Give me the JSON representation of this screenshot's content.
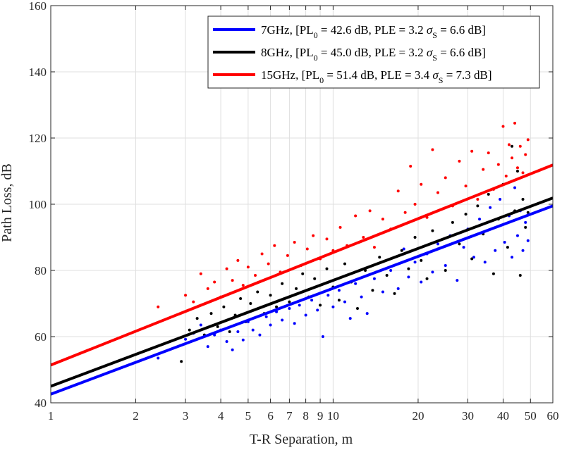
{
  "chart_data": {
    "type": "scatter",
    "title": "",
    "xlabel": "T-R Separation, m",
    "ylabel": "Path Loss, dB",
    "xscale": "log",
    "xlim": [
      1,
      60
    ],
    "ylim": [
      40,
      160
    ],
    "grid": true,
    "legend_position": "top-right",
    "x_ticks": [
      1,
      2,
      3,
      4,
      5,
      6,
      7,
      8,
      9,
      10,
      20,
      30,
      40,
      50,
      60
    ],
    "x_tick_labels": [
      "1",
      "2",
      "3",
      "4",
      "5",
      "6",
      "7",
      "8",
      "9",
      "10",
      "20",
      "30",
      "40",
      "50",
      "60"
    ],
    "y_ticks": [
      40,
      60,
      80,
      100,
      120,
      140,
      160
    ],
    "y_tick_labels": [
      "40",
      "60",
      "80",
      "100",
      "120",
      "140",
      "160"
    ],
    "series": [
      {
        "name": "7GHz",
        "color": "#0000ff",
        "pl0": 42.6,
        "ple": 3.2,
        "sigma": 6.6,
        "legend": {
          "a": "7GHz, [PL",
          "b": "0",
          "c": " = 42.6 dB, PLE = 3.2 ",
          "d": "σ",
          "e": "S",
          "f": " = 6.6 dB]"
        },
        "points": [
          [
            2.4,
            53.5
          ],
          [
            3.0,
            59.2
          ],
          [
            3.2,
            61.0
          ],
          [
            3.4,
            63.5
          ],
          [
            3.6,
            57.0
          ],
          [
            3.8,
            60.5
          ],
          [
            4.0,
            62.0
          ],
          [
            4.2,
            58.5
          ],
          [
            4.4,
            56.0
          ],
          [
            4.6,
            61.5
          ],
          [
            4.8,
            59.0
          ],
          [
            5.0,
            64.5
          ],
          [
            5.2,
            62.0
          ],
          [
            5.5,
            60.5
          ],
          [
            5.8,
            66.0
          ],
          [
            6.0,
            63.5
          ],
          [
            6.3,
            67.5
          ],
          [
            6.6,
            65.0
          ],
          [
            7.0,
            68.5
          ],
          [
            7.3,
            64.0
          ],
          [
            7.6,
            69.5
          ],
          [
            8.0,
            66.5
          ],
          [
            8.4,
            71.0
          ],
          [
            8.8,
            68.0
          ],
          [
            9.2,
            60.0
          ],
          [
            9.6,
            72.5
          ],
          [
            10.0,
            69.0
          ],
          [
            10.5,
            74.0
          ],
          [
            11.0,
            70.5
          ],
          [
            11.5,
            65.5
          ],
          [
            12.0,
            76.0
          ],
          [
            12.6,
            72.0
          ],
          [
            13.2,
            67.0
          ],
          [
            14.0,
            77.5
          ],
          [
            15.0,
            73.5
          ],
          [
            16.0,
            80.0
          ],
          [
            17.0,
            74.5
          ],
          [
            17.8,
            86.5
          ],
          [
            18.5,
            78.0
          ],
          [
            19.5,
            82.5
          ],
          [
            20.5,
            76.5
          ],
          [
            21.5,
            85.0
          ],
          [
            22.5,
            79.5
          ],
          [
            23.5,
            88.0
          ],
          [
            25.0,
            81.5
          ],
          [
            26.0,
            90.5
          ],
          [
            27.5,
            77.0
          ],
          [
            29.0,
            87.0
          ],
          [
            30.0,
            92.5
          ],
          [
            31.5,
            84.0
          ],
          [
            33.0,
            95.5
          ],
          [
            34.5,
            82.5
          ],
          [
            36.0,
            99.0
          ],
          [
            37.5,
            86.0
          ],
          [
            39.0,
            101.5
          ],
          [
            40.5,
            88.5
          ],
          [
            42.0,
            96.5
          ],
          [
            43.0,
            84.0
          ],
          [
            44.0,
            105.0
          ],
          [
            45.0,
            90.5
          ],
          [
            46.0,
            98.0
          ],
          [
            47.0,
            86.0
          ],
          [
            48.0,
            94.5
          ],
          [
            49.0,
            89.0
          ]
        ]
      },
      {
        "name": "8GHz",
        "color": "#000000",
        "pl0": 45.0,
        "ple": 3.2,
        "sigma": 6.6,
        "legend": {
          "a": "8GHz, [PL",
          "b": "0",
          "c": " = 45.0 dB, PLE = 3.2 ",
          "d": "σ",
          "e": "S",
          "f": " = 6.6 dB]"
        },
        "points": [
          [
            2.9,
            52.5
          ],
          [
            3.1,
            62.0
          ],
          [
            3.3,
            65.5
          ],
          [
            3.5,
            60.5
          ],
          [
            3.7,
            67.0
          ],
          [
            3.9,
            63.0
          ],
          [
            4.1,
            69.0
          ],
          [
            4.3,
            61.5
          ],
          [
            4.5,
            66.5
          ],
          [
            4.7,
            71.5
          ],
          [
            4.9,
            64.5
          ],
          [
            5.1,
            70.0
          ],
          [
            5.4,
            73.5
          ],
          [
            5.7,
            67.0
          ],
          [
            6.0,
            72.5
          ],
          [
            6.3,
            69.0
          ],
          [
            6.6,
            76.0
          ],
          [
            7.0,
            70.5
          ],
          [
            7.4,
            74.5
          ],
          [
            7.8,
            79.0
          ],
          [
            8.2,
            72.0
          ],
          [
            8.6,
            77.5
          ],
          [
            9.0,
            69.5
          ],
          [
            9.5,
            80.5
          ],
          [
            10.0,
            75.0
          ],
          [
            10.5,
            71.0
          ],
          [
            11.0,
            82.0
          ],
          [
            11.6,
            76.5
          ],
          [
            12.2,
            68.5
          ],
          [
            13.0,
            80.0
          ],
          [
            13.8,
            74.0
          ],
          [
            14.6,
            84.0
          ],
          [
            15.5,
            78.5
          ],
          [
            16.5,
            73.0
          ],
          [
            17.5,
            86.0
          ],
          [
            18.5,
            80.5
          ],
          [
            19.5,
            90.0
          ],
          [
            20.5,
            83.0
          ],
          [
            21.5,
            77.5
          ],
          [
            22.5,
            92.0
          ],
          [
            23.5,
            86.5
          ],
          [
            25.0,
            80.0
          ],
          [
            26.5,
            94.5
          ],
          [
            28.0,
            88.0
          ],
          [
            29.5,
            97.0
          ],
          [
            31.0,
            83.5
          ],
          [
            32.5,
            99.5
          ],
          [
            34.0,
            91.0
          ],
          [
            35.5,
            103.0
          ],
          [
            37.0,
            79.0
          ],
          [
            38.5,
            95.5
          ],
          [
            40.0,
            106.0
          ],
          [
            41.5,
            87.0
          ],
          [
            43.0,
            117.5
          ],
          [
            44.0,
            98.0
          ],
          [
            45.0,
            110.0
          ],
          [
            46.0,
            78.5
          ],
          [
            47.0,
            101.5
          ],
          [
            48.0,
            93.0
          ],
          [
            49.0,
            97.5
          ]
        ]
      },
      {
        "name": "15GHz",
        "color": "#ff0000",
        "pl0": 51.4,
        "ple": 3.4,
        "sigma": 7.3,
        "legend": {
          "a": "15GHz, [PL",
          "b": "0",
          "c": " = 51.4 dB, PLE = 3.4 ",
          "d": "σ",
          "e": "S",
          "f": " = 7.3 dB]"
        },
        "points": [
          [
            2.4,
            69.0
          ],
          [
            3.0,
            72.5
          ],
          [
            3.2,
            70.5
          ],
          [
            3.4,
            79.0
          ],
          [
            3.6,
            74.5
          ],
          [
            3.8,
            76.5
          ],
          [
            4.0,
            72.0
          ],
          [
            4.2,
            80.5
          ],
          [
            4.4,
            77.0
          ],
          [
            4.6,
            83.0
          ],
          [
            4.8,
            75.5
          ],
          [
            5.0,
            81.0
          ],
          [
            5.3,
            78.5
          ],
          [
            5.6,
            85.0
          ],
          [
            5.9,
            82.0
          ],
          [
            6.2,
            87.5
          ],
          [
            6.5,
            79.5
          ],
          [
            6.9,
            84.5
          ],
          [
            7.3,
            88.5
          ],
          [
            7.7,
            81.5
          ],
          [
            8.1,
            86.5
          ],
          [
            8.5,
            90.5
          ],
          [
            9.0,
            83.5
          ],
          [
            9.5,
            89.5
          ],
          [
            10.0,
            86.0
          ],
          [
            10.6,
            93.0
          ],
          [
            11.2,
            87.5
          ],
          [
            12.0,
            96.5
          ],
          [
            12.8,
            90.0
          ],
          [
            13.5,
            98.0
          ],
          [
            14.0,
            87.0
          ],
          [
            15.0,
            95.5
          ],
          [
            16.0,
            92.5
          ],
          [
            17.0,
            104.0
          ],
          [
            18.0,
            97.5
          ],
          [
            18.8,
            111.5
          ],
          [
            19.5,
            100.0
          ],
          [
            20.5,
            106.0
          ],
          [
            21.5,
            96.0
          ],
          [
            22.5,
            116.5
          ],
          [
            23.5,
            103.5
          ],
          [
            25.0,
            108.0
          ],
          [
            26.5,
            99.5
          ],
          [
            28.0,
            113.0
          ],
          [
            29.5,
            105.5
          ],
          [
            31.0,
            116.0
          ],
          [
            32.5,
            101.5
          ],
          [
            34.0,
            110.5
          ],
          [
            35.5,
            115.5
          ],
          [
            37.0,
            104.5
          ],
          [
            38.5,
            112.0
          ],
          [
            40.0,
            123.5
          ],
          [
            41.0,
            108.5
          ],
          [
            42.0,
            118.0
          ],
          [
            43.0,
            114.0
          ],
          [
            44.0,
            124.5
          ],
          [
            45.0,
            111.0
          ],
          [
            46.0,
            117.5
          ],
          [
            47.0,
            109.5
          ],
          [
            48.0,
            115.0
          ],
          [
            49.0,
            119.5
          ]
        ]
      }
    ]
  }
}
